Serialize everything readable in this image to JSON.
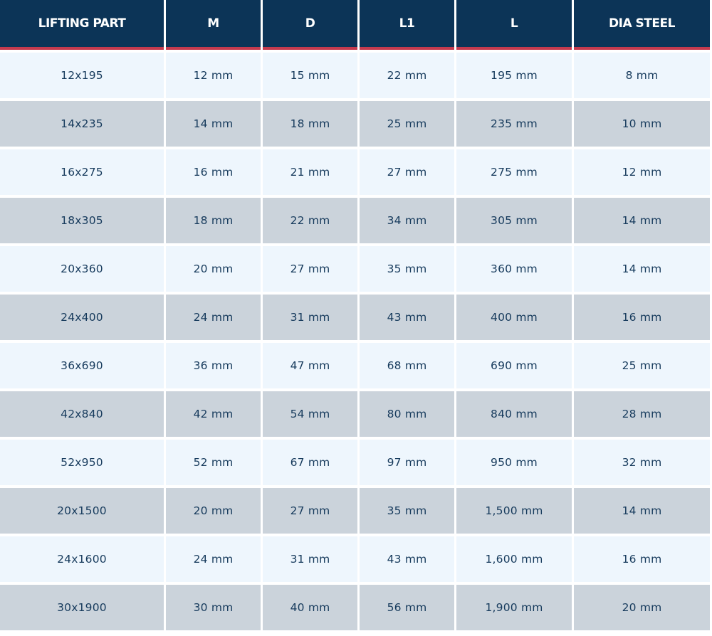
{
  "table": {
    "headers": [
      "LIFTING PART",
      "M",
      "D",
      "L1",
      "L",
      "DIA STEEL"
    ],
    "rows": [
      [
        "12x195",
        "12 mm",
        "15 mm",
        "22 mm",
        "195 mm",
        "8 mm"
      ],
      [
        "14x235",
        "14 mm",
        "18 mm",
        "25 mm",
        "235 mm",
        "10 mm"
      ],
      [
        "16x275",
        "16 mm",
        "21 mm",
        "27 mm",
        "275 mm",
        "12 mm"
      ],
      [
        "18x305",
        "18 mm",
        "22 mm",
        "34 mm",
        "305 mm",
        "14 mm"
      ],
      [
        "20x360",
        "20 mm",
        "27 mm",
        "35 mm",
        "360 mm",
        "14 mm"
      ],
      [
        "24x400",
        "24 mm",
        "31 mm",
        "43 mm",
        "400 mm",
        "16 mm"
      ],
      [
        "36x690",
        "36 mm",
        "47 mm",
        "68 mm",
        "690 mm",
        "25 mm"
      ],
      [
        "42x840",
        "42 mm",
        "54 mm",
        "80 mm",
        "840 mm",
        "28 mm"
      ],
      [
        "52x950",
        "52 mm",
        "67 mm",
        "97 mm",
        "950 mm",
        "32 mm"
      ],
      [
        "20x1500",
        "20 mm",
        "27 mm",
        "35 mm",
        "1,500 mm",
        "14 mm"
      ],
      [
        "24x1600",
        "24 mm",
        "31 mm",
        "43 mm",
        "1,600 mm",
        "16 mm"
      ],
      [
        "30x1900",
        "30 mm",
        "40 mm",
        "56 mm",
        "1,900 mm",
        "20 mm"
      ]
    ]
  },
  "colors": {
    "header_bg": "#0c3457",
    "header_accent": "#c53a4e",
    "row_light": "#eef6fd",
    "row_dark": "#cbd3db",
    "cell_text": "#163a5c"
  }
}
